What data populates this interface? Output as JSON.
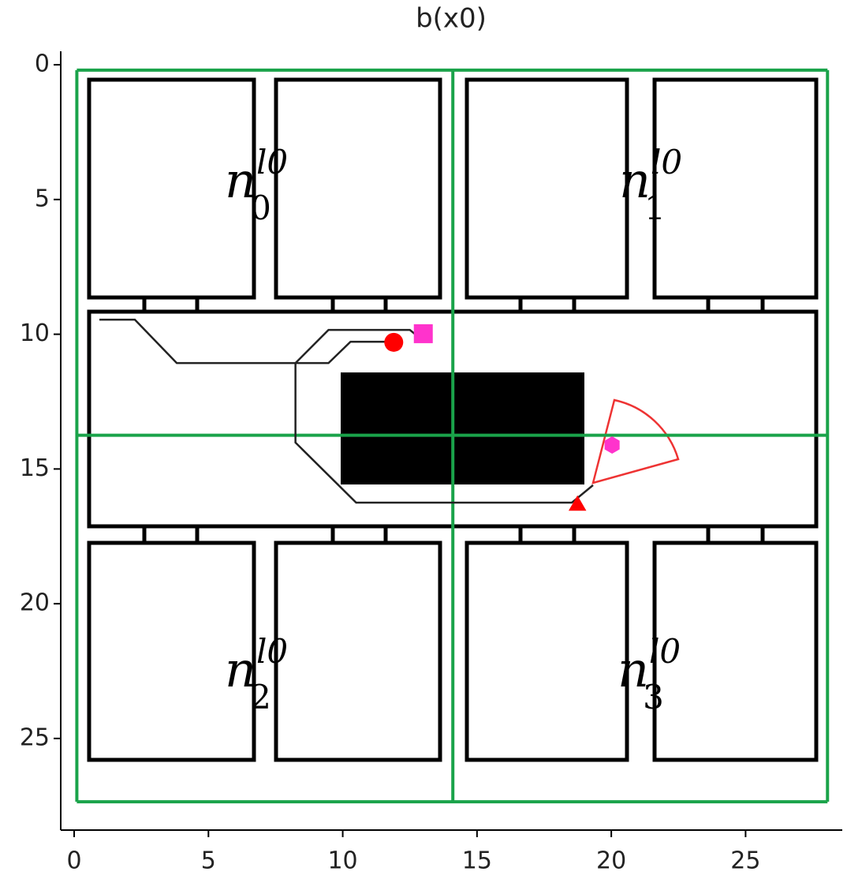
{
  "chart_data": {
    "type": "map",
    "title": "b(x0)",
    "xlim": [
      -0.5,
      28.6
    ],
    "ylim": [
      28.4,
      -0.5
    ],
    "xticks": [
      0,
      5,
      10,
      15,
      20,
      25
    ],
    "yticks": [
      0,
      5,
      10,
      15,
      20,
      25
    ],
    "partition": {
      "color": "#1aa34a",
      "x": [
        0.1,
        14.1,
        28.05
      ],
      "y": [
        0.2,
        13.75,
        27.35
      ]
    },
    "regions": [
      {
        "base": "n",
        "sub": "0",
        "sup": "l0"
      },
      {
        "base": "n",
        "sub": "1",
        "sup": "l0"
      },
      {
        "base": "n",
        "sub": "2",
        "sup": "l0"
      },
      {
        "base": "n",
        "sub": "3",
        "sup": "l0"
      }
    ],
    "path": {
      "color": "#222",
      "x": [
        0.94,
        2.26,
        3.82,
        9.47,
        10.29,
        11.91,
        null,
        12.7,
        12.5,
        9.47,
        8.24,
        8.24,
        10.5,
        18.53,
        19.32
      ],
      "y": [
        9.46,
        9.46,
        11.07,
        11.07,
        10.28,
        10.28,
        null,
        10.0,
        9.84,
        9.84,
        11.07,
        14.02,
        16.25,
        16.25,
        15.6
      ]
    },
    "markers": [
      {
        "shape": "circle",
        "color": "#ff0000",
        "x": 11.9,
        "y": 10.3
      },
      {
        "shape": "square",
        "color": "#ff33cc",
        "x": 13.0,
        "y": 9.98
      },
      {
        "shape": "hexagon",
        "color": "#ff33cc",
        "x": 20.03,
        "y": 14.11
      },
      {
        "shape": "triangle",
        "color": "#ff0000",
        "x": 18.74,
        "y": 16.36
      }
    ]
  }
}
